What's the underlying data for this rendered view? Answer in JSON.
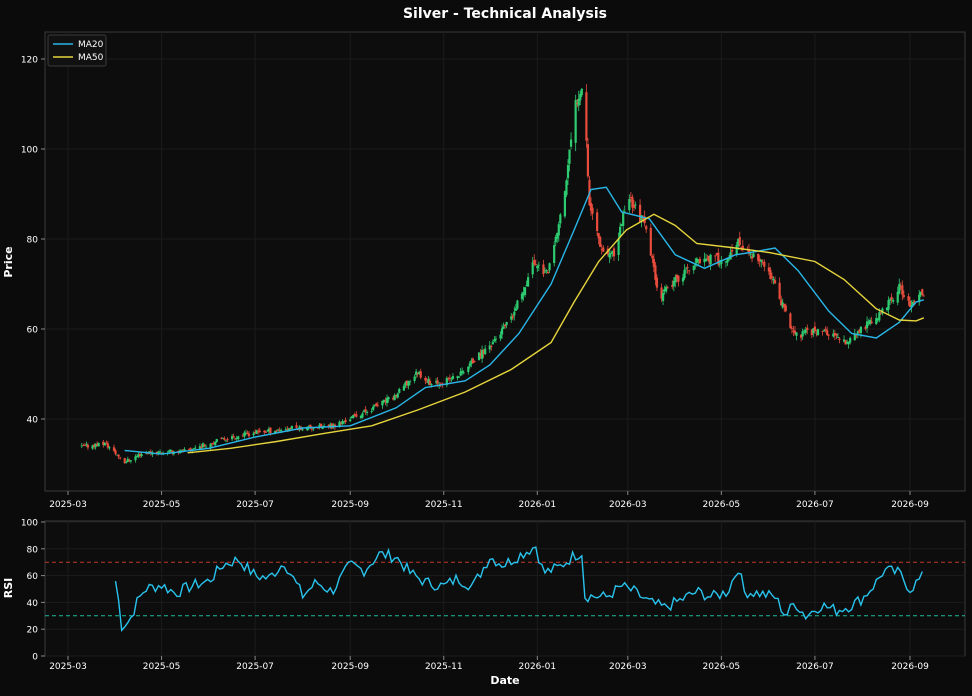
{
  "colors": {
    "background": "#0b0b0b",
    "panel": "#0d0d0d",
    "axis": "#3a3a3a",
    "grid": "#1c1c1c",
    "text": "#ffffff",
    "up": "#2ecc71",
    "down": "#e74c3c",
    "ma20": "#29b6e8",
    "ma50": "#e6d53c",
    "rsi": "#29c4ee",
    "overbought": "#c0392b",
    "oversold": "#1abc9c"
  },
  "chart_data": [
    {
      "type": "candlestick",
      "title": "Silver - Technical Analysis",
      "ylabel": "Price",
      "xlabel": "",
      "ylim": [
        24,
        126
      ],
      "yticks": [
        40,
        60,
        80,
        100,
        120
      ],
      "xticks": [
        "2025-03",
        "2025-05",
        "2025-07",
        "2025-09",
        "2025-11",
        "2026-01",
        "2026-03",
        "2026-05",
        "2026-07",
        "2026-09"
      ],
      "grid": true,
      "legend_position": "top-left",
      "series": [
        {
          "name": "MA20",
          "color": "#29b6e8"
        },
        {
          "name": "MA50",
          "color": "#e6d53c"
        }
      ],
      "date_range": [
        "2025-03-10",
        "2026-09-10"
      ],
      "price_anchors": [
        [
          "2025-03-10",
          33.8
        ],
        [
          "2025-03-25",
          34.6
        ],
        [
          "2025-04-07",
          30.5
        ],
        [
          "2025-04-20",
          32.6
        ],
        [
          "2025-05-15",
          32.8
        ],
        [
          "2025-06-10",
          35.5
        ],
        [
          "2025-07-01",
          37.0
        ],
        [
          "2025-07-25",
          38.0
        ],
        [
          "2025-08-20",
          38.3
        ],
        [
          "2025-09-10",
          41.5
        ],
        [
          "2025-09-30",
          45.0
        ],
        [
          "2025-10-15",
          50.5
        ],
        [
          "2025-10-25",
          47.5
        ],
        [
          "2025-11-10",
          49.5
        ],
        [
          "2025-11-30",
          56.0
        ],
        [
          "2025-12-15",
          62.0
        ],
        [
          "2025-12-30",
          75.0
        ],
        [
          "2026-01-08",
          72.0
        ],
        [
          "2026-01-18",
          88.0
        ],
        [
          "2026-01-26",
          110.0
        ],
        [
          "2026-01-31",
          116.0
        ],
        [
          "2026-02-04",
          88.0
        ],
        [
          "2026-02-12",
          78.0
        ],
        [
          "2026-02-20",
          76.0
        ],
        [
          "2026-03-01",
          90.0
        ],
        [
          "2026-03-12",
          83.0
        ],
        [
          "2026-03-22",
          67.0
        ],
        [
          "2026-04-05",
          72.0
        ],
        [
          "2026-04-20",
          76.0
        ],
        [
          "2026-05-05",
          75.0
        ],
        [
          "2026-05-12",
          79.0
        ],
        [
          "2026-05-18",
          77.0
        ],
        [
          "2026-06-01",
          73.0
        ],
        [
          "2026-06-10",
          65.0
        ],
        [
          "2026-06-18",
          58.5
        ],
        [
          "2026-07-05",
          60.0
        ],
        [
          "2026-07-20",
          57.0
        ],
        [
          "2026-08-01",
          60.0
        ],
        [
          "2026-08-15",
          64.0
        ],
        [
          "2026-08-25",
          69.0
        ],
        [
          "2026-09-01",
          65.0
        ],
        [
          "2026-09-10",
          68.0
        ]
      ],
      "ma20": [
        [
          "2025-04-07",
          33.0
        ],
        [
          "2025-05-01",
          32.2
        ],
        [
          "2025-06-01",
          33.5
        ],
        [
          "2025-07-01",
          36.0
        ],
        [
          "2025-08-01",
          38.0
        ],
        [
          "2025-09-01",
          38.5
        ],
        [
          "2025-10-01",
          42.5
        ],
        [
          "2025-10-20",
          47.0
        ],
        [
          "2025-11-15",
          48.5
        ],
        [
          "2025-12-01",
          52.0
        ],
        [
          "2025-12-20",
          59.0
        ],
        [
          "2026-01-10",
          70.0
        ],
        [
          "2026-01-25",
          82.0
        ],
        [
          "2026-02-05",
          91.0
        ],
        [
          "2026-02-15",
          91.5
        ],
        [
          "2026-02-25",
          86.0
        ],
        [
          "2026-03-15",
          84.5
        ],
        [
          "2026-04-01",
          76.5
        ],
        [
          "2026-04-20",
          73.5
        ],
        [
          "2026-05-10",
          76.5
        ],
        [
          "2026-05-20",
          77.0
        ],
        [
          "2026-06-05",
          78.0
        ],
        [
          "2026-06-20",
          73.0
        ],
        [
          "2026-07-10",
          64.0
        ],
        [
          "2026-07-25",
          59.0
        ],
        [
          "2026-08-10",
          58.0
        ],
        [
          "2026-08-25",
          61.5
        ],
        [
          "2026-09-05",
          66.0
        ],
        [
          "2026-09-10",
          66.5
        ]
      ],
      "ma50": [
        [
          "2025-05-18",
          32.5
        ],
        [
          "2025-06-15",
          33.5
        ],
        [
          "2025-07-15",
          35.0
        ],
        [
          "2025-08-15",
          36.8
        ],
        [
          "2025-09-15",
          38.5
        ],
        [
          "2025-10-15",
          42.0
        ],
        [
          "2025-11-15",
          46.0
        ],
        [
          "2025-12-15",
          51.0
        ],
        [
          "2026-01-10",
          57.0
        ],
        [
          "2026-01-25",
          66.0
        ],
        [
          "2026-02-10",
          75.0
        ],
        [
          "2026-02-28",
          82.0
        ],
        [
          "2026-03-18",
          85.5
        ],
        [
          "2026-04-01",
          83.0
        ],
        [
          "2026-04-15",
          79.0
        ],
        [
          "2026-05-10",
          78.0
        ],
        [
          "2026-06-01",
          77.0
        ],
        [
          "2026-07-01",
          75.0
        ],
        [
          "2026-07-20",
          71.0
        ],
        [
          "2026-08-10",
          64.5
        ],
        [
          "2026-08-25",
          62.0
        ],
        [
          "2026-09-05",
          61.8
        ],
        [
          "2026-09-10",
          62.5
        ]
      ]
    },
    {
      "type": "line",
      "title": "",
      "ylabel": "RSI",
      "xlabel": "Date",
      "ylim": [
        0,
        100
      ],
      "yticks": [
        0,
        20,
        40,
        60,
        80,
        100
      ],
      "xticks": [
        "2025-03",
        "2025-05",
        "2025-07",
        "2025-09",
        "2025-11",
        "2026-01",
        "2026-03",
        "2026-05",
        "2026-07",
        "2026-09"
      ],
      "reference_lines": [
        70,
        30
      ],
      "grid": true,
      "rsi": [
        [
          "2025-04-01",
          56
        ],
        [
          "2025-04-02",
          60
        ],
        [
          "2025-04-04",
          22
        ],
        [
          "2025-04-10",
          26
        ],
        [
          "2025-04-15",
          40
        ],
        [
          "2025-04-20",
          50
        ],
        [
          "2025-05-01",
          53
        ],
        [
          "2025-05-10",
          47
        ],
        [
          "2025-05-20",
          52
        ],
        [
          "2025-06-01",
          56
        ],
        [
          "2025-06-10",
          68
        ],
        [
          "2025-06-20",
          72
        ],
        [
          "2025-07-01",
          60
        ],
        [
          "2025-07-10",
          58
        ],
        [
          "2025-07-20",
          70
        ],
        [
          "2025-08-01",
          45
        ],
        [
          "2025-08-10",
          55
        ],
        [
          "2025-08-20",
          48
        ],
        [
          "2025-09-01",
          68
        ],
        [
          "2025-09-10",
          64
        ],
        [
          "2025-09-20",
          76
        ],
        [
          "2025-10-01",
          74
        ],
        [
          "2025-10-10",
          62
        ],
        [
          "2025-10-20",
          55
        ],
        [
          "2025-11-01",
          52
        ],
        [
          "2025-11-10",
          58
        ],
        [
          "2025-11-20",
          52
        ],
        [
          "2025-12-01",
          74
        ],
        [
          "2025-12-10",
          68
        ],
        [
          "2025-12-20",
          75
        ],
        [
          "2025-12-31",
          82
        ],
        [
          "2026-01-05",
          62
        ],
        [
          "2026-01-15",
          66
        ],
        [
          "2026-01-25",
          75
        ],
        [
          "2026-01-31",
          78
        ],
        [
          "2026-02-01",
          45
        ],
        [
          "2026-02-15",
          44
        ],
        [
          "2026-02-25",
          52
        ],
        [
          "2026-03-05",
          48
        ],
        [
          "2026-03-15",
          40
        ],
        [
          "2026-03-25",
          36
        ],
        [
          "2026-04-05",
          42
        ],
        [
          "2026-04-15",
          48
        ],
        [
          "2026-04-25",
          44
        ],
        [
          "2026-05-05",
          48
        ],
        [
          "2026-05-12",
          66
        ],
        [
          "2026-05-16",
          48
        ],
        [
          "2026-05-25",
          47
        ],
        [
          "2026-06-05",
          44
        ],
        [
          "2026-06-12",
          30
        ],
        [
          "2026-06-18",
          40
        ],
        [
          "2026-06-25",
          30
        ],
        [
          "2026-07-05",
          38
        ],
        [
          "2026-07-15",
          34
        ],
        [
          "2026-07-25",
          38
        ],
        [
          "2026-08-01",
          43
        ],
        [
          "2026-08-10",
          55
        ],
        [
          "2026-08-15",
          64
        ],
        [
          "2026-08-25",
          62
        ],
        [
          "2026-09-01",
          50
        ],
        [
          "2026-09-10",
          60
        ]
      ]
    }
  ]
}
